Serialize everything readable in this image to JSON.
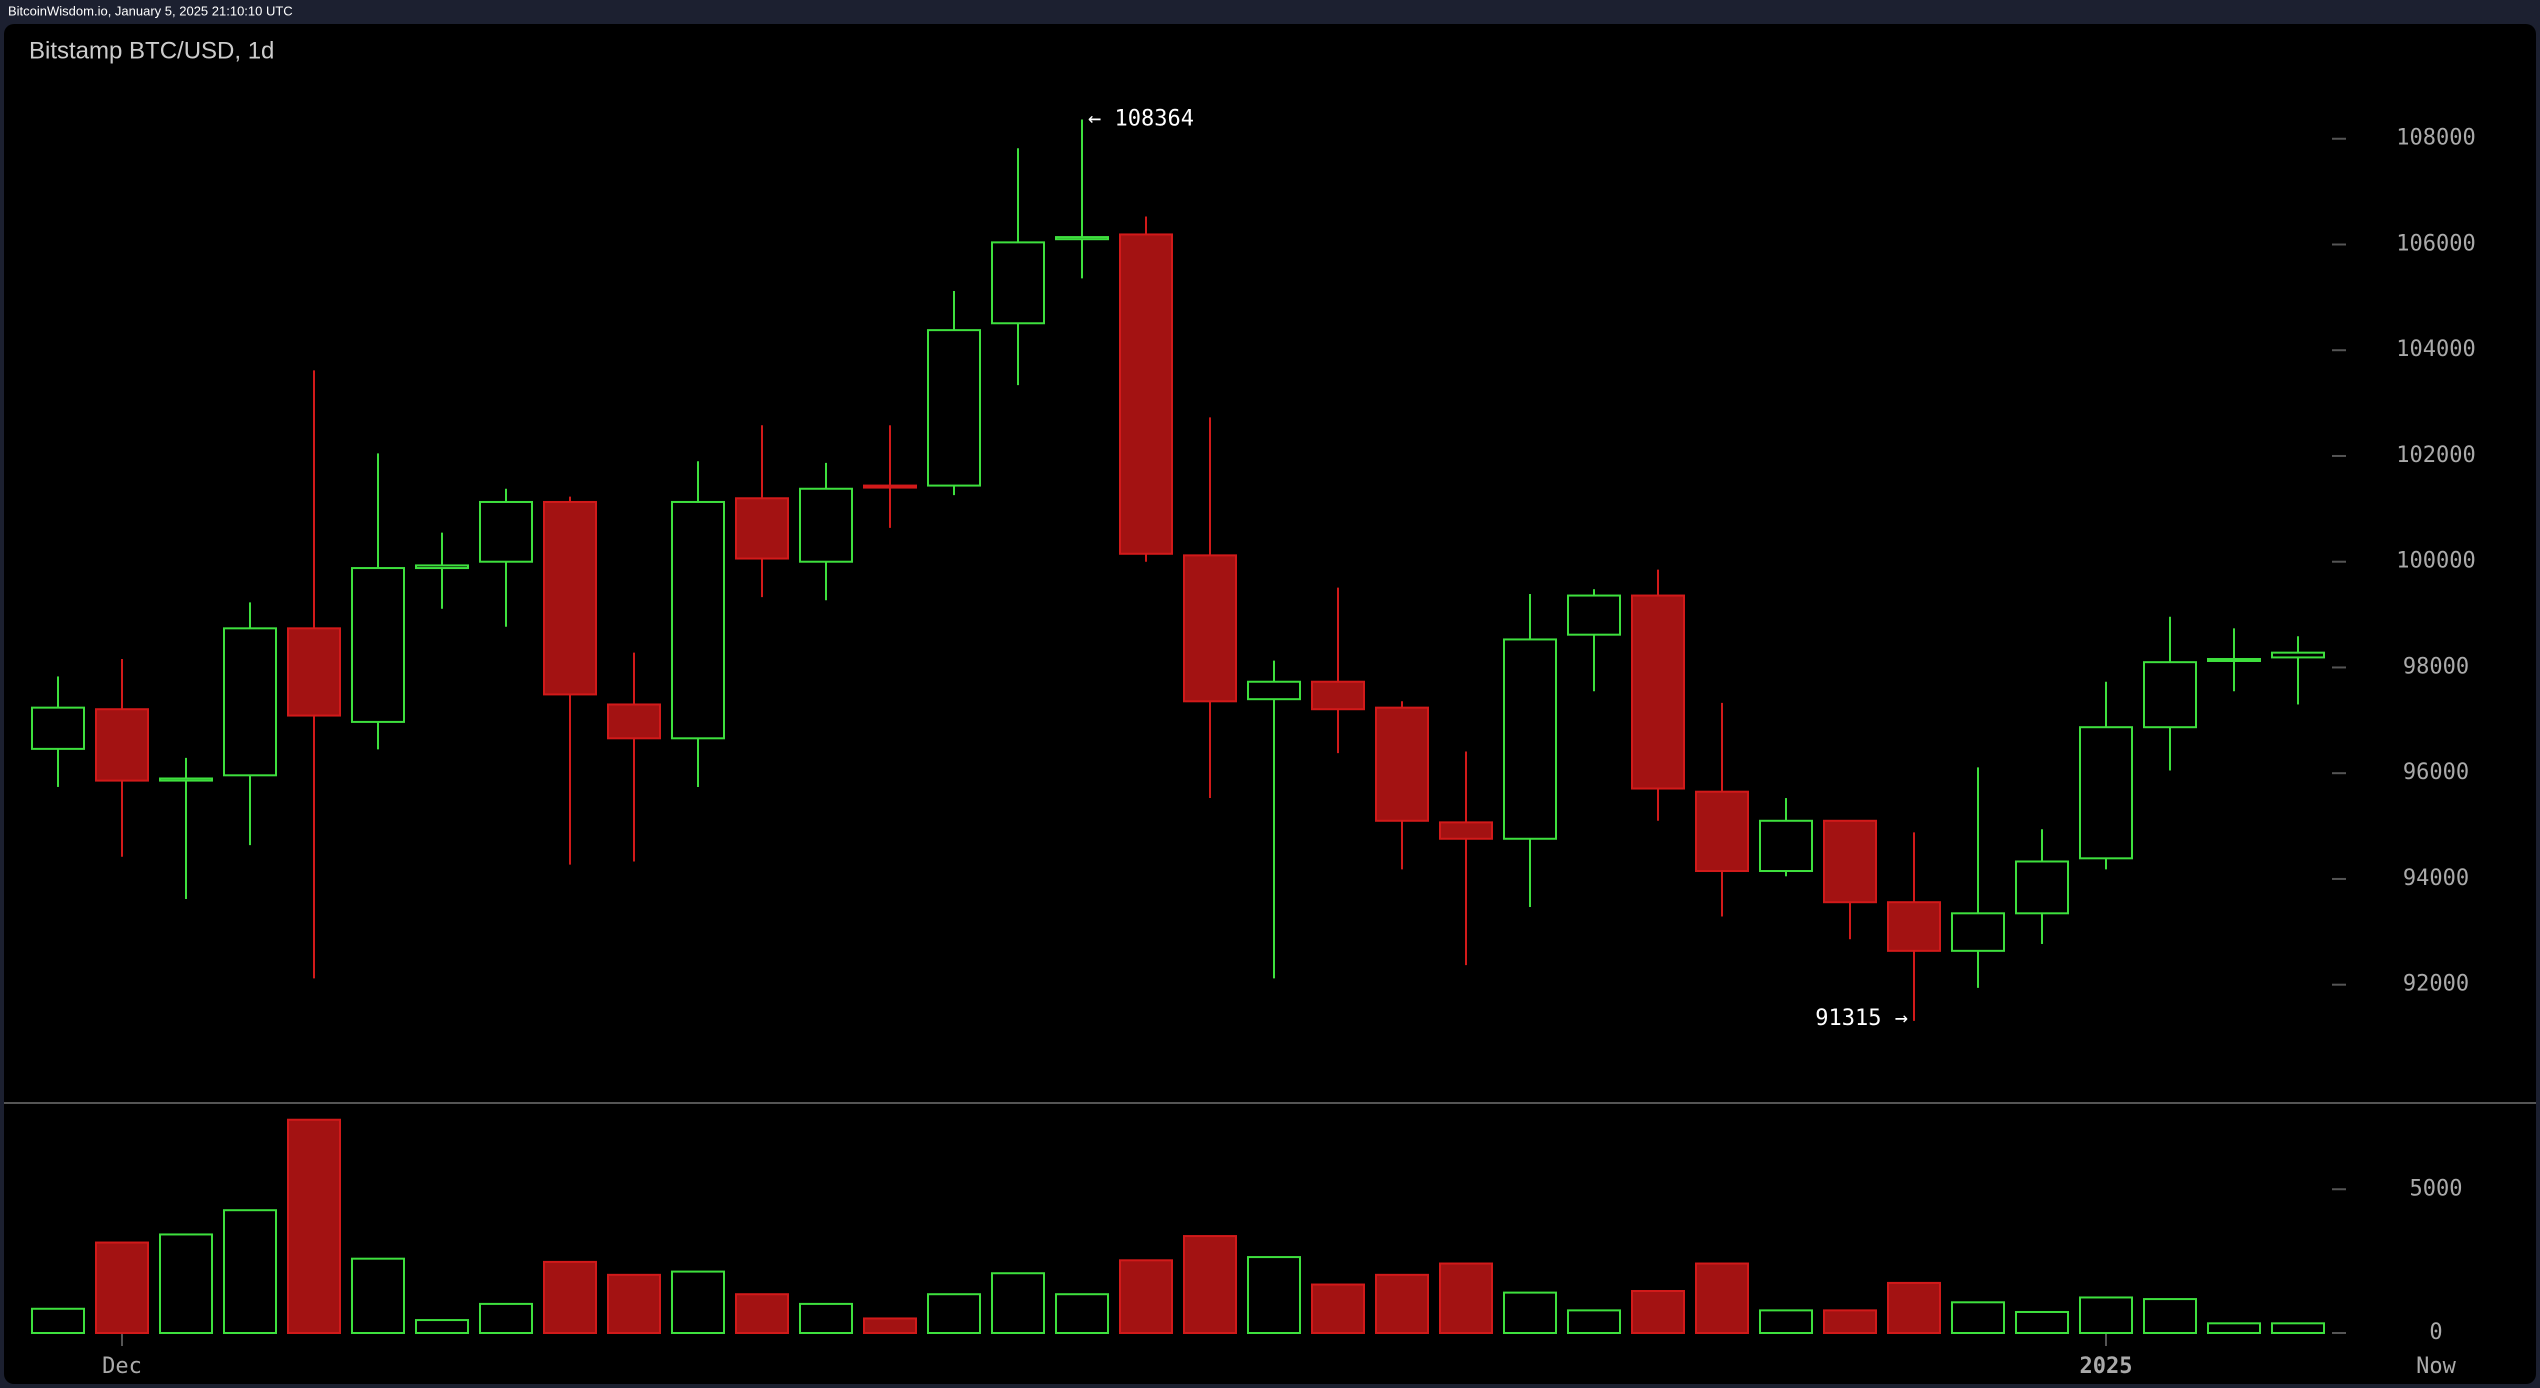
{
  "header": "BitcoinWisdom.io, January 5, 2025 21:10:10 UTC",
  "chart_data": {
    "type": "candlestick",
    "title": "Bitstamp BTC/USD, 1d",
    "categories": [
      null,
      "Dec",
      null,
      null,
      null,
      null,
      null,
      null,
      null,
      null,
      null,
      null,
      null,
      null,
      null,
      null,
      null,
      null,
      null,
      null,
      null,
      null,
      null,
      null,
      null,
      null,
      null,
      null,
      null,
      null,
      null,
      null,
      "2025",
      null,
      null,
      null
    ],
    "now_label": "Now",
    "open": [
      96460,
      97210,
      95860,
      95960,
      98740,
      96970,
      99880,
      100000,
      101130,
      97300,
      96660,
      101200,
      100000,
      101440,
      101440,
      104510,
      106100,
      106190,
      100120,
      97400,
      97730,
      97240,
      95070,
      94760,
      98620,
      99360,
      95650,
      94150,
      95100,
      93560,
      92640,
      93350,
      94390,
      96870,
      98130,
      98190
    ],
    "high": [
      97830,
      98160,
      96290,
      99230,
      103620,
      102050,
      100550,
      101380,
      101230,
      98280,
      101900,
      102580,
      101870,
      102580,
      105120,
      107820,
      108364,
      106530,
      102730,
      98130,
      99510,
      97360,
      96410,
      99390,
      99480,
      99850,
      97330,
      95530,
      95100,
      94880,
      96110,
      94940,
      97730,
      98960,
      98740,
      98590
    ],
    "low": [
      95740,
      94420,
      93620,
      94640,
      92120,
      96450,
      99110,
      98770,
      94270,
      94330,
      95740,
      99330,
      99270,
      100640,
      101260,
      103340,
      105360,
      100000,
      95530,
      92120,
      96380,
      94180,
      92370,
      93470,
      97550,
      95100,
      93290,
      94050,
      92860,
      91315,
      91940,
      92770,
      94180,
      96050,
      97550,
      97300
    ],
    "close": [
      97240,
      95860,
      95900,
      98740,
      97090,
      99880,
      99930,
      101130,
      97490,
      96660,
      101130,
      100060,
      101380,
      101410,
      104380,
      106040,
      106140,
      100150,
      97360,
      97730,
      97210,
      95100,
      94760,
      98530,
      99360,
      95710,
      94150,
      95100,
      93560,
      92640,
      93350,
      94330,
      96870,
      98100,
      98160,
      98280
    ],
    "up_color": "#3ee03e",
    "down_color": "#a31212",
    "ylim": [
      89800,
      110000
    ],
    "yticks": [
      92000,
      94000,
      96000,
      98000,
      100000,
      102000,
      104000,
      106000,
      108000
    ],
    "annotations": [
      {
        "label": "← 108364",
        "value": 108364
      },
      {
        "label": "91315 →",
        "value": 91315
      }
    ],
    "volume": {
      "values": [
        843,
        3147,
        3428,
        4271,
        7418,
        2585,
        450,
        1012,
        2473,
        2023,
        2136,
        1349,
        1012,
        506,
        1349,
        2079,
        1349,
        2529,
        3372,
        2641,
        1686,
        2023,
        2417,
        1405,
        787,
        1461,
        2417,
        787,
        787,
        1742,
        1068,
        731,
        1236,
        1180,
        337,
        337
      ],
      "ylim": [
        0,
        8000
      ],
      "yticks": [
        0,
        5000
      ]
    }
  }
}
